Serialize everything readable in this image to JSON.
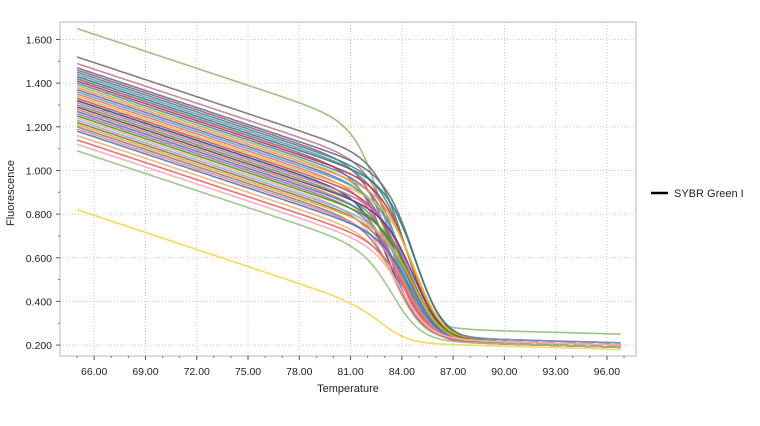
{
  "chart_data": {
    "type": "line",
    "title": "",
    "xlabel": "Temperature",
    "ylabel": "Fluorescence",
    "xlim": [
      64.0,
      97.7
    ],
    "ylim": [
      0.15,
      1.68
    ],
    "xticks": [
      66.0,
      69.0,
      72.0,
      75.0,
      78.0,
      81.0,
      84.0,
      87.0,
      90.0,
      93.0,
      96.0
    ],
    "xtick_labels": [
      "66.00",
      "69.00",
      "72.00",
      "75.00",
      "78.00",
      "81.00",
      "84.00",
      "87.00",
      "90.00",
      "93.00",
      "96.00"
    ],
    "yticks": [
      0.2,
      0.4,
      0.6,
      0.8,
      1.0,
      1.2,
      1.4,
      1.6
    ],
    "ytick_labels": [
      "0.200",
      "0.400",
      "0.600",
      "0.800",
      "1.000",
      "1.200",
      "1.400",
      "1.600"
    ],
    "grid": true,
    "legend": {
      "position": "right",
      "entries": [
        {
          "label": "SYBR Green I",
          "color": "#000000"
        }
      ]
    },
    "x_start": 65.0,
    "x_end": 96.8,
    "series": [
      {
        "start": 1.65,
        "tm": 83.2,
        "plateau": 0.25,
        "color": "#8fbc6f"
      },
      {
        "start": 1.52,
        "tm": 84.3,
        "plateau": 0.21,
        "color": "#7a6f72"
      },
      {
        "start": 1.49,
        "tm": 83.9,
        "plateau": 0.2,
        "color": "#c97a8a"
      },
      {
        "start": 1.47,
        "tm": 84.8,
        "plateau": 0.2,
        "color": "#5b6f8f"
      },
      {
        "start": 1.46,
        "tm": 83.6,
        "plateau": 0.19,
        "color": "#b0567a"
      },
      {
        "start": 1.45,
        "tm": 84.5,
        "plateau": 0.2,
        "color": "#3a8f8f"
      },
      {
        "start": 1.44,
        "tm": 84.1,
        "plateau": 0.21,
        "color": "#6d8fbf"
      },
      {
        "start": 1.43,
        "tm": 84.9,
        "plateau": 0.19,
        "color": "#2e7d6a"
      },
      {
        "start": 1.42,
        "tm": 83.4,
        "plateau": 0.2,
        "color": "#8a5a9e"
      },
      {
        "start": 1.41,
        "tm": 84.6,
        "plateau": 0.2,
        "color": "#c0392b"
      },
      {
        "start": 1.4,
        "tm": 84.2,
        "plateau": 0.19,
        "color": "#4f81bd"
      },
      {
        "start": 1.39,
        "tm": 83.8,
        "plateau": 0.2,
        "color": "#9bbb59"
      },
      {
        "start": 1.38,
        "tm": 84.7,
        "plateau": 0.2,
        "color": "#f79646"
      },
      {
        "start": 1.37,
        "tm": 84.0,
        "plateau": 0.19,
        "color": "#8064a2"
      },
      {
        "start": 1.36,
        "tm": 84.4,
        "plateau": 0.2,
        "color": "#4bacc6"
      },
      {
        "start": 1.35,
        "tm": 83.7,
        "plateau": 0.2,
        "color": "#e46c8f"
      },
      {
        "start": 1.34,
        "tm": 84.9,
        "plateau": 0.19,
        "color": "#f2b134"
      },
      {
        "start": 1.33,
        "tm": 84.3,
        "plateau": 0.2,
        "color": "#c0504d"
      },
      {
        "start": 1.32,
        "tm": 83.5,
        "plateau": 0.2,
        "color": "#1f497d"
      },
      {
        "start": 1.31,
        "tm": 84.6,
        "plateau": 0.19,
        "color": "#d06bb0"
      },
      {
        "start": 1.3,
        "tm": 84.1,
        "plateau": 0.2,
        "color": "#77933c"
      },
      {
        "start": 1.29,
        "tm": 84.8,
        "plateau": 0.19,
        "color": "#5a3e85"
      },
      {
        "start": 1.28,
        "tm": 83.9,
        "plateau": 0.2,
        "color": "#e07a5f"
      },
      {
        "start": 1.27,
        "tm": 84.4,
        "plateau": 0.2,
        "color": "#31859c"
      },
      {
        "start": 1.26,
        "tm": 84.0,
        "plateau": 0.19,
        "color": "#b65fcf"
      },
      {
        "start": 1.25,
        "tm": 84.7,
        "plateau": 0.2,
        "color": "#4e9a06"
      },
      {
        "start": 1.24,
        "tm": 83.6,
        "plateau": 0.2,
        "color": "#f4a6a0"
      },
      {
        "start": 1.23,
        "tm": 84.5,
        "plateau": 0.19,
        "color": "#6fb7d6"
      },
      {
        "start": 1.22,
        "tm": 84.2,
        "plateau": 0.2,
        "color": "#9c6b3c"
      },
      {
        "start": 1.21,
        "tm": 84.8,
        "plateau": 0.19,
        "color": "#e8a838"
      },
      {
        "start": 1.2,
        "tm": 83.8,
        "plateau": 0.2,
        "color": "#7f7f7f"
      },
      {
        "start": 1.19,
        "tm": 84.3,
        "plateau": 0.2,
        "color": "#ff7f7f"
      },
      {
        "start": 1.18,
        "tm": 84.6,
        "plateau": 0.19,
        "color": "#3c78d8"
      },
      {
        "start": 1.16,
        "tm": 84.0,
        "plateau": 0.2,
        "color": "#f6b26b"
      },
      {
        "start": 1.14,
        "tm": 84.4,
        "plateau": 0.19,
        "color": "#e06666"
      },
      {
        "start": 1.12,
        "tm": 84.2,
        "plateau": 0.2,
        "color": "#f9a9b8"
      },
      {
        "start": 1.09,
        "tm": 83.6,
        "plateau": 0.19,
        "color": "#93c47d"
      },
      {
        "start": 0.82,
        "tm": 83.2,
        "plateau": 0.18,
        "color": "#f7d54a"
      }
    ]
  }
}
